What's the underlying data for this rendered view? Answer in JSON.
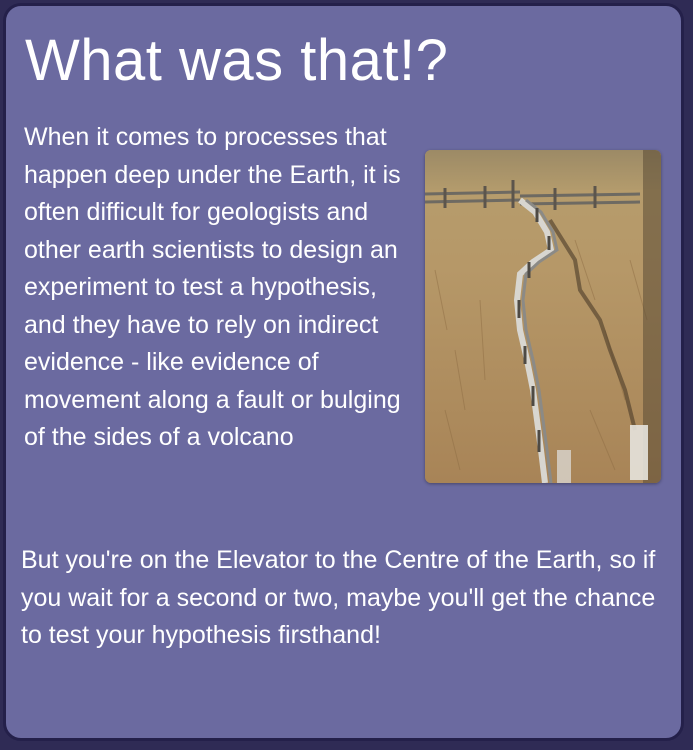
{
  "card": {
    "title": "What was that!?",
    "body": "When it comes to processes that happen deep under the Earth, it is often difficult for geologists and other earth scientists to design an experiment to test a hypothesis, and they have to rely on indirect evidence - like evidence of movement along a fault or bulging of the sides of a volcano",
    "footer": "But you're on the Elevator to the Centre of the Earth, so if you wait for a second or two, maybe you'll get the chance to test your hypothesis firsthand!",
    "image": {
      "icon": "fault-fence-photo"
    }
  },
  "colors": {
    "card_background": "#6b6aa0",
    "card_border": "#24204a",
    "text": "#ffffff"
  }
}
